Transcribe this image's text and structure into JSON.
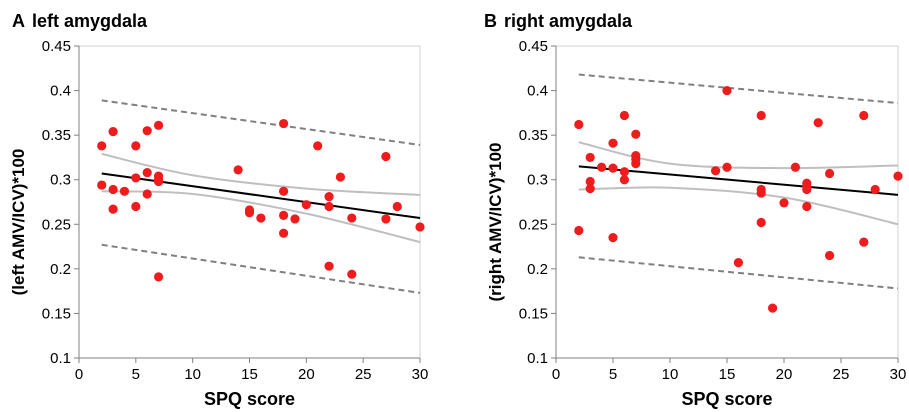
{
  "chart_data": [
    {
      "type": "scatter",
      "panel_label": "A",
      "title": "left amygdala",
      "xlabel": "SPQ score",
      "ylabel": "(left AMV/ICV)*100",
      "xlim": [
        0,
        30
      ],
      "ylim": [
        0.1,
        0.45
      ],
      "xticks": [
        0,
        5,
        10,
        15,
        20,
        25,
        30
      ],
      "yticks": [
        0.1,
        0.15,
        0.2,
        0.25,
        0.3,
        0.35,
        0.4,
        0.45
      ],
      "ytick_labels": [
        "0.1",
        "0.15",
        "0.2",
        "0.25",
        "0.3",
        "0.35",
        "0.4",
        "0.45"
      ],
      "grid": false,
      "points": [
        [
          2,
          0.338
        ],
        [
          2,
          0.294
        ],
        [
          3,
          0.354
        ],
        [
          3,
          0.289
        ],
        [
          3,
          0.267
        ],
        [
          4,
          0.287
        ],
        [
          5,
          0.338
        ],
        [
          5,
          0.302
        ],
        [
          5,
          0.27
        ],
        [
          6,
          0.355
        ],
        [
          6,
          0.308
        ],
        [
          6,
          0.284
        ],
        [
          7,
          0.361
        ],
        [
          7,
          0.304
        ],
        [
          7,
          0.3
        ],
        [
          7,
          0.298
        ],
        [
          7,
          0.191
        ],
        [
          14,
          0.311
        ],
        [
          15,
          0.266
        ],
        [
          15,
          0.263
        ],
        [
          16,
          0.257
        ],
        [
          18,
          0.363
        ],
        [
          18,
          0.287
        ],
        [
          18,
          0.26
        ],
        [
          18,
          0.24
        ],
        [
          19,
          0.256
        ],
        [
          20,
          0.272
        ],
        [
          21,
          0.338
        ],
        [
          22,
          0.281
        ],
        [
          22,
          0.27
        ],
        [
          22,
          0.203
        ],
        [
          23,
          0.303
        ],
        [
          24,
          0.257
        ],
        [
          24,
          0.194
        ],
        [
          27,
          0.326
        ],
        [
          27,
          0.256
        ],
        [
          28,
          0.27
        ],
        [
          30,
          0.247
        ]
      ],
      "fit_line": [
        [
          2,
          0.307
        ],
        [
          30,
          0.257
        ]
      ],
      "confidence_band": {
        "x": [
          2,
          10,
          20,
          30
        ],
        "upper": [
          0.329,
          0.305,
          0.29,
          0.283
        ],
        "lower": [
          0.287,
          0.284,
          0.262,
          0.23
        ]
      },
      "prediction_band": {
        "x": [
          2,
          30
        ],
        "upper": [
          0.389,
          0.339
        ],
        "lower": [
          0.227,
          0.173
        ]
      },
      "colors": {
        "points": "#ee1c1c",
        "fit": "#000000",
        "confidence": "#bfbfbf",
        "prediction": "#808080"
      }
    },
    {
      "type": "scatter",
      "panel_label": "B",
      "title": "right amygdala",
      "xlabel": "SPQ score",
      "ylabel": "(right AMV/ICV)*100",
      "xlim": [
        0,
        30
      ],
      "ylim": [
        0.1,
        0.45
      ],
      "xticks": [
        0,
        5,
        10,
        15,
        20,
        25,
        30
      ],
      "yticks": [
        0.1,
        0.15,
        0.2,
        0.25,
        0.3,
        0.35,
        0.4,
        0.45
      ],
      "ytick_labels": [
        "0.1",
        "0.15",
        "0.2",
        "0.25",
        "0.3",
        "0.35",
        "0.4",
        "0.45"
      ],
      "grid": false,
      "points": [
        [
          2,
          0.362
        ],
        [
          2,
          0.243
        ],
        [
          3,
          0.325
        ],
        [
          3,
          0.298
        ],
        [
          3,
          0.29
        ],
        [
          4,
          0.314
        ],
        [
          5,
          0.341
        ],
        [
          5,
          0.313
        ],
        [
          5,
          0.235
        ],
        [
          6,
          0.372
        ],
        [
          6,
          0.309
        ],
        [
          6,
          0.3
        ],
        [
          7,
          0.351
        ],
        [
          7,
          0.327
        ],
        [
          7,
          0.323
        ],
        [
          7,
          0.318
        ],
        [
          14,
          0.31
        ],
        [
          15,
          0.4
        ],
        [
          15,
          0.314
        ],
        [
          16,
          0.207
        ],
        [
          18,
          0.372
        ],
        [
          18,
          0.289
        ],
        [
          18,
          0.285
        ],
        [
          18,
          0.252
        ],
        [
          19,
          0.156
        ],
        [
          20,
          0.274
        ],
        [
          21,
          0.314
        ],
        [
          22,
          0.296
        ],
        [
          22,
          0.292
        ],
        [
          22,
          0.289
        ],
        [
          22,
          0.27
        ],
        [
          23,
          0.364
        ],
        [
          24,
          0.307
        ],
        [
          24,
          0.215
        ],
        [
          27,
          0.372
        ],
        [
          27,
          0.23
        ],
        [
          28,
          0.289
        ],
        [
          30,
          0.304
        ]
      ],
      "fit_line": [
        [
          2,
          0.315
        ],
        [
          30,
          0.283
        ]
      ],
      "confidence_band": {
        "x": [
          2,
          10,
          20,
          30
        ],
        "upper": [
          0.342,
          0.318,
          0.313,
          0.316
        ],
        "lower": [
          0.289,
          0.291,
          0.28,
          0.25
        ]
      },
      "prediction_band": {
        "x": [
          2,
          30
        ],
        "upper": [
          0.418,
          0.386
        ],
        "lower": [
          0.213,
          0.178
        ]
      },
      "colors": {
        "points": "#ee1c1c",
        "fit": "#000000",
        "confidence": "#bfbfbf",
        "prediction": "#808080"
      }
    }
  ]
}
